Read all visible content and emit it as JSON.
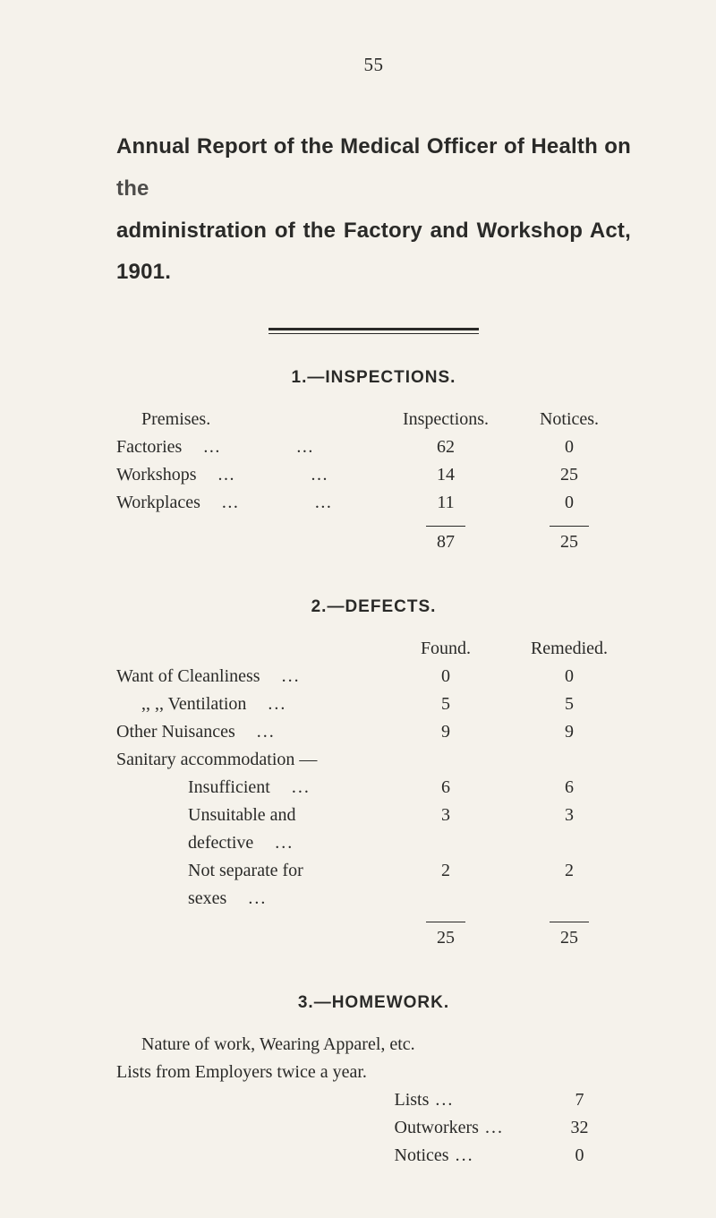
{
  "page_number": "55",
  "title_line1_a": "Annual Report of the Medical Officer of Health on ",
  "title_line1_b": "the",
  "title_line2": "administration of the Factory and Workshop Act, 1901.",
  "sections": {
    "s1": {
      "heading": "1.—INSPECTIONS.",
      "col_label": "Premises.",
      "col_a": "Inspections.",
      "col_b": "Notices.",
      "rows": [
        {
          "label": "Factories",
          "a": "62",
          "b": "0"
        },
        {
          "label": "Workshops",
          "a": "14",
          "b": "25"
        },
        {
          "label": "Workplaces",
          "a": "11",
          "b": "0"
        }
      ],
      "total_a": "87",
      "total_b": "25"
    },
    "s2": {
      "heading": "2.—DEFECTS.",
      "col_a": "Found.",
      "col_b": "Remedied.",
      "rows": [
        {
          "label": "Want of Cleanliness",
          "a": "0",
          "b": "0",
          "indent": 0
        },
        {
          "label": ",,    ,,  Ventilation",
          "a": "5",
          "b": "5",
          "indent": 1
        },
        {
          "label": "Other Nuisances",
          "a": "9",
          "b": "9",
          "indent": 0
        },
        {
          "label": "Sanitary accommodation —",
          "a": "",
          "b": "",
          "indent": 0,
          "nodots": true
        },
        {
          "label": "Insufficient",
          "a": "6",
          "b": "6",
          "indent": 2
        },
        {
          "label": "Unsuitable and defective",
          "a": "3",
          "b": "3",
          "indent": 2
        },
        {
          "label": "Not separate for sexes",
          "a": "2",
          "b": "2",
          "indent": 2
        }
      ],
      "total_a": "25",
      "total_b": "25"
    },
    "s3": {
      "heading": "3.—HOMEWORK.",
      "line1": "Nature of work, Wearing Apparel, etc.",
      "line2": "Lists from Employers twice a year.",
      "rows": [
        {
          "label": "Lists",
          "val": "7"
        },
        {
          "label": "Outworkers",
          "val": "32"
        },
        {
          "label": "Notices",
          "val": "0"
        }
      ]
    }
  },
  "colors": {
    "background": "#f5f2eb",
    "text": "#2a2a28",
    "rule": "#2a2a28"
  },
  "fonts": {
    "body_family": "Times New Roman",
    "heading_family": "Arial",
    "body_size_pt": 15,
    "heading_size_pt": 14,
    "title_size_pt": 18
  }
}
